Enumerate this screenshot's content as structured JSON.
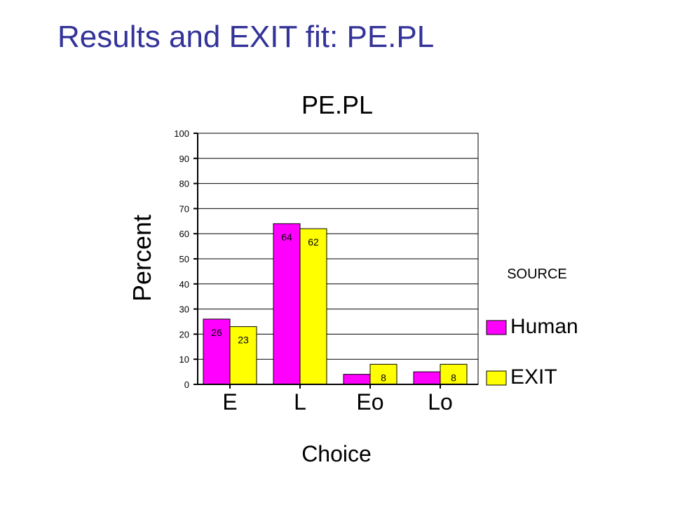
{
  "slide": {
    "title": "Results and EXIT fit: PE.PL"
  },
  "colors": {
    "title": "#333399",
    "human": "#ff00ff",
    "exit": "#ffff00",
    "axis": "#000000"
  },
  "chart_data": {
    "type": "bar",
    "title": "PE.PL",
    "xlabel": "Choice",
    "ylabel": "Percent",
    "categories": [
      "E",
      "L",
      "Eo",
      "Lo"
    ],
    "series": [
      {
        "name": "Human",
        "values": [
          26,
          64,
          4,
          5
        ],
        "labels": [
          "26",
          "64",
          "",
          ""
        ],
        "color": "#ff00ff"
      },
      {
        "name": "EXIT",
        "values": [
          23,
          62,
          8,
          8
        ],
        "labels": [
          "23",
          "62",
          "8",
          "8"
        ],
        "color": "#ffff00"
      }
    ],
    "ylim": [
      0,
      100
    ],
    "yticks": [
      "0",
      "10",
      "20",
      "30",
      "40",
      "50",
      "60",
      "70",
      "80",
      "90",
      "100"
    ],
    "grid": true,
    "legend": {
      "title": "SOURCE",
      "placement": "right"
    }
  }
}
